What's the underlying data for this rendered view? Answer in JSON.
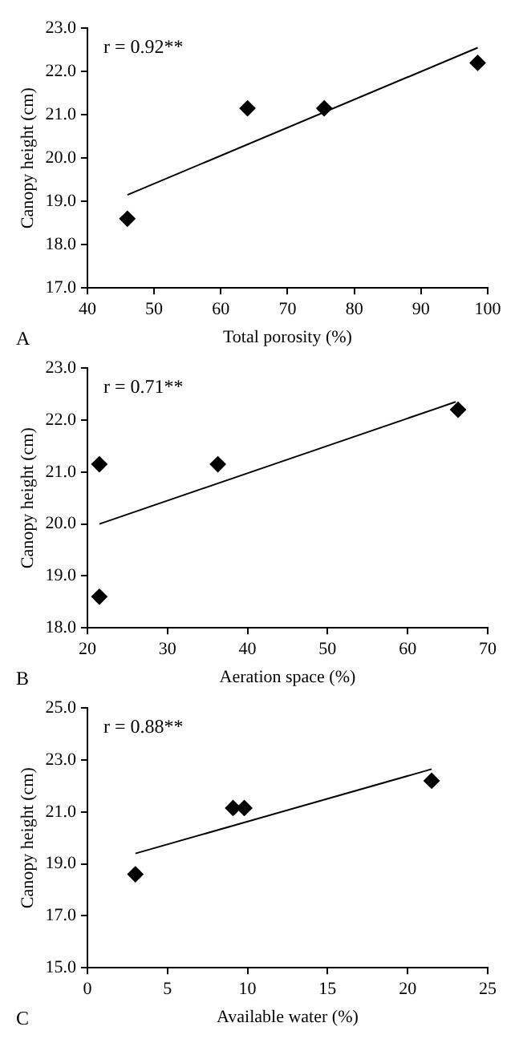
{
  "chart_data": [
    {
      "type": "scatter",
      "xlabel": "Total porosity (%)",
      "ylabel": "Canopy height (cm)",
      "grid": false,
      "legend": false,
      "xlim": [
        40,
        100
      ],
      "xticks": [
        40,
        50,
        60,
        70,
        80,
        90,
        100
      ],
      "ylim": [
        17,
        23
      ],
      "yticks": [
        {
          "value": 17,
          "label": "17.0"
        },
        {
          "value": 18,
          "label": "18.0"
        },
        {
          "value": 19,
          "label": "19.0"
        },
        {
          "value": 20,
          "label": "20.0"
        },
        {
          "value": 21,
          "label": "21.0"
        },
        {
          "value": 22,
          "label": "22.0"
        },
        {
          "value": 23,
          "label": "23.0"
        }
      ],
      "annotations": [
        "r = 0.92**",
        "A"
      ],
      "series": [
        {
          "color": "#000000",
          "marker": "diamond",
          "x": [
            46,
            64,
            75.5,
            98.5
          ],
          "values": [
            18.6,
            21.15,
            21.15,
            22.2
          ]
        },
        {
          "type": "line",
          "marker": "none",
          "color": "#000000",
          "x": [
            46,
            98.5
          ],
          "values": [
            19.15,
            22.55
          ]
        }
      ]
    },
    {
      "type": "scatter",
      "xlabel": "Aeration space (%)",
      "ylabel": "Canopy height (cm)",
      "grid": false,
      "legend": false,
      "xlim": [
        20,
        70
      ],
      "xticks": [
        20,
        30,
        40,
        50,
        60,
        70
      ],
      "ylim": [
        18,
        23
      ],
      "yticks": [
        {
          "value": 18,
          "label": "18.0"
        },
        {
          "value": 19,
          "label": "19.0"
        },
        {
          "value": 20,
          "label": "20.0"
        },
        {
          "value": 21,
          "label": "21.0"
        },
        {
          "value": 22,
          "label": "22.0"
        },
        {
          "value": 23,
          "label": "23.0"
        }
      ],
      "annotations": [
        "r = 0.71**",
        "B"
      ],
      "series": [
        {
          "color": "#000000",
          "marker": "diamond",
          "x": [
            21.5,
            21.5,
            36.3,
            66.3
          ],
          "values": [
            18.6,
            21.15,
            21.15,
            22.2
          ]
        },
        {
          "type": "line",
          "marker": "none",
          "color": "#000000",
          "x": [
            21.5,
            66
          ],
          "values": [
            20.0,
            22.35
          ]
        }
      ]
    },
    {
      "type": "scatter",
      "xlabel": "Available water (%)",
      "ylabel": "Canopy height (cm)",
      "grid": false,
      "legend": false,
      "xlim": [
        0,
        25
      ],
      "xticks": [
        0,
        5,
        10,
        15,
        20,
        25
      ],
      "ylim": [
        15,
        25
      ],
      "yticks": [
        {
          "value": 15,
          "label": "15.0"
        },
        {
          "value": 17,
          "label": "17.0"
        },
        {
          "value": 19,
          "label": "19.0"
        },
        {
          "value": 21,
          "label": "21.0"
        },
        {
          "value": 23,
          "label": "23.0"
        },
        {
          "value": 25,
          "label": "25.0"
        }
      ],
      "annotations": [
        "r = 0.88**",
        "C"
      ],
      "series": [
        {
          "color": "#000000",
          "marker": "diamond",
          "x": [
            3,
            9.1,
            9.8,
            21.5
          ],
          "values": [
            18.6,
            21.15,
            21.15,
            22.2
          ]
        },
        {
          "type": "line",
          "marker": "none",
          "color": "#000000",
          "x": [
            3,
            21.5
          ],
          "values": [
            19.4,
            22.65
          ]
        }
      ]
    }
  ]
}
